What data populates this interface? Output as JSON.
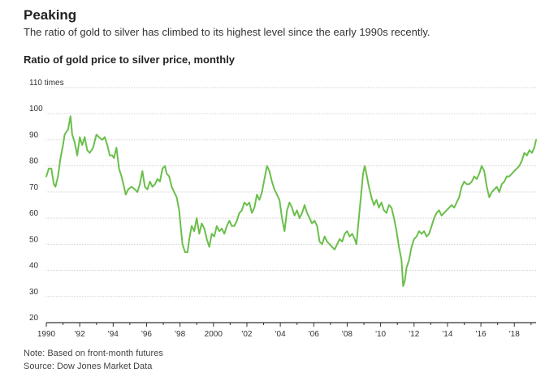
{
  "headline": "Peaking",
  "subhead": "The ratio of gold to silver has climbed to its highest level since the early 1990s recently.",
  "note": "Note: Based on front-month futures",
  "source": "Source: Dow Jones Market Data",
  "colors": {
    "line": "#6abf4b",
    "grid": "#d0d0d0",
    "axis": "#333333",
    "text": "#333333"
  },
  "chart_data": {
    "type": "line",
    "title": "Ratio of gold price to silver price, monthly",
    "ylabel": "",
    "xlabel": "",
    "ylim": [
      20,
      110
    ],
    "xlim": [
      1990,
      2019.3
    ],
    "y_ticks": [
      {
        "value": 110,
        "label": "110 times"
      },
      {
        "value": 100,
        "label": "100"
      },
      {
        "value": 90,
        "label": "90"
      },
      {
        "value": 80,
        "label": "80"
      },
      {
        "value": 70,
        "label": "70"
      },
      {
        "value": 60,
        "label": "60"
      },
      {
        "value": 50,
        "label": "50"
      },
      {
        "value": 40,
        "label": "40"
      },
      {
        "value": 30,
        "label": "30"
      },
      {
        "value": 20,
        "label": "20"
      }
    ],
    "x_ticks": [
      {
        "value": 1990,
        "label": "1990"
      },
      {
        "value": 1992,
        "label": "'92"
      },
      {
        "value": 1994,
        "label": "'94"
      },
      {
        "value": 1996,
        "label": "'96"
      },
      {
        "value": 1998,
        "label": "'98"
      },
      {
        "value": 2000,
        "label": "2000"
      },
      {
        "value": 2002,
        "label": "'02"
      },
      {
        "value": 2004,
        "label": "'04"
      },
      {
        "value": 2006,
        "label": "'06"
      },
      {
        "value": 2008,
        "label": "'08"
      },
      {
        "value": 2010,
        "label": "'10"
      },
      {
        "value": 2012,
        "label": "'12"
      },
      {
        "value": 2014,
        "label": "'14"
      },
      {
        "value": 2016,
        "label": "'16"
      },
      {
        "value": 2018,
        "label": "'18"
      }
    ],
    "minor_x_ticks": [
      1991,
      1993,
      1995,
      1997,
      1999,
      2001,
      2003,
      2005,
      2007,
      2009,
      2011,
      2013,
      2015,
      2017,
      2019
    ],
    "grid": true,
    "series": [
      {
        "color": "#6abf4b",
        "points": [
          [
            1990.0,
            76
          ],
          [
            1990.15,
            79
          ],
          [
            1990.3,
            79
          ],
          [
            1990.45,
            73
          ],
          [
            1990.55,
            72
          ],
          [
            1990.7,
            76
          ],
          [
            1990.85,
            83
          ],
          [
            1991.0,
            88
          ],
          [
            1991.1,
            92
          ],
          [
            1991.3,
            94
          ],
          [
            1991.45,
            99
          ],
          [
            1991.55,
            92
          ],
          [
            1991.7,
            89
          ],
          [
            1991.85,
            84
          ],
          [
            1992.0,
            91
          ],
          [
            1992.15,
            88
          ],
          [
            1992.3,
            91
          ],
          [
            1992.45,
            86
          ],
          [
            1992.6,
            85
          ],
          [
            1992.8,
            87
          ],
          [
            1993.0,
            92
          ],
          [
            1993.15,
            91
          ],
          [
            1993.35,
            90
          ],
          [
            1993.5,
            91
          ],
          [
            1993.65,
            88
          ],
          [
            1993.8,
            84
          ],
          [
            1993.95,
            84
          ],
          [
            1994.05,
            83
          ],
          [
            1994.2,
            87
          ],
          [
            1994.35,
            79
          ],
          [
            1994.5,
            76
          ],
          [
            1994.65,
            72
          ],
          [
            1994.75,
            69
          ],
          [
            1994.9,
            71
          ],
          [
            1995.1,
            72
          ],
          [
            1995.3,
            71
          ],
          [
            1995.45,
            70
          ],
          [
            1995.6,
            73
          ],
          [
            1995.75,
            78
          ],
          [
            1995.9,
            72
          ],
          [
            1996.05,
            71
          ],
          [
            1996.2,
            74
          ],
          [
            1996.35,
            72
          ],
          [
            1996.5,
            73
          ],
          [
            1996.65,
            75
          ],
          [
            1996.8,
            74
          ],
          [
            1996.95,
            79
          ],
          [
            1997.1,
            80
          ],
          [
            1997.2,
            77
          ],
          [
            1997.35,
            76
          ],
          [
            1997.5,
            72
          ],
          [
            1997.65,
            70
          ],
          [
            1997.8,
            68
          ],
          [
            1997.95,
            63
          ],
          [
            1998.05,
            56
          ],
          [
            1998.15,
            50
          ],
          [
            1998.3,
            47
          ],
          [
            1998.45,
            47
          ],
          [
            1998.55,
            52
          ],
          [
            1998.7,
            57
          ],
          [
            1998.85,
            55
          ],
          [
            1999.0,
            60
          ],
          [
            1999.15,
            54
          ],
          [
            1999.3,
            58
          ],
          [
            1999.45,
            56
          ],
          [
            1999.6,
            52
          ],
          [
            1999.75,
            49
          ],
          [
            1999.9,
            54
          ],
          [
            2000.05,
            53
          ],
          [
            2000.2,
            57
          ],
          [
            2000.35,
            55
          ],
          [
            2000.5,
            56
          ],
          [
            2000.65,
            54
          ],
          [
            2000.8,
            57
          ],
          [
            2000.95,
            59
          ],
          [
            2001.1,
            57
          ],
          [
            2001.25,
            57
          ],
          [
            2001.4,
            59
          ],
          [
            2001.55,
            62
          ],
          [
            2001.7,
            63
          ],
          [
            2001.85,
            66
          ],
          [
            2002.0,
            65
          ],
          [
            2002.15,
            66
          ],
          [
            2002.3,
            62
          ],
          [
            2002.45,
            64
          ],
          [
            2002.6,
            69
          ],
          [
            2002.75,
            67
          ],
          [
            2002.9,
            70
          ],
          [
            2003.05,
            75
          ],
          [
            2003.2,
            80
          ],
          [
            2003.35,
            78
          ],
          [
            2003.5,
            74
          ],
          [
            2003.65,
            71
          ],
          [
            2003.8,
            69
          ],
          [
            2003.95,
            67
          ],
          [
            2004.1,
            60
          ],
          [
            2004.25,
            55
          ],
          [
            2004.4,
            63
          ],
          [
            2004.55,
            66
          ],
          [
            2004.7,
            64
          ],
          [
            2004.85,
            61
          ],
          [
            2005.0,
            63
          ],
          [
            2005.15,
            60
          ],
          [
            2005.3,
            62
          ],
          [
            2005.45,
            65
          ],
          [
            2005.6,
            62
          ],
          [
            2005.75,
            60
          ],
          [
            2005.9,
            58
          ],
          [
            2006.05,
            59
          ],
          [
            2006.2,
            57
          ],
          [
            2006.35,
            51
          ],
          [
            2006.5,
            50
          ],
          [
            2006.65,
            53
          ],
          [
            2006.8,
            51
          ],
          [
            2006.95,
            50
          ],
          [
            2007.1,
            49
          ],
          [
            2007.25,
            48
          ],
          [
            2007.4,
            50
          ],
          [
            2007.55,
            52
          ],
          [
            2007.7,
            51
          ],
          [
            2007.85,
            54
          ],
          [
            2008.0,
            55
          ],
          [
            2008.15,
            53
          ],
          [
            2008.3,
            54
          ],
          [
            2008.45,
            52
          ],
          [
            2008.55,
            50
          ],
          [
            2008.7,
            60
          ],
          [
            2008.85,
            70
          ],
          [
            2008.95,
            77
          ],
          [
            2009.05,
            80
          ],
          [
            2009.15,
            77
          ],
          [
            2009.3,
            72
          ],
          [
            2009.45,
            68
          ],
          [
            2009.6,
            65
          ],
          [
            2009.75,
            67
          ],
          [
            2009.9,
            64
          ],
          [
            2010.05,
            66
          ],
          [
            2010.2,
            63
          ],
          [
            2010.35,
            62
          ],
          [
            2010.5,
            65
          ],
          [
            2010.65,
            64
          ],
          [
            2010.8,
            60
          ],
          [
            2010.95,
            55
          ],
          [
            2011.1,
            49
          ],
          [
            2011.25,
            44
          ],
          [
            2011.35,
            34
          ],
          [
            2011.45,
            36
          ],
          [
            2011.55,
            41
          ],
          [
            2011.7,
            44
          ],
          [
            2011.85,
            49
          ],
          [
            2012.0,
            52
          ],
          [
            2012.15,
            53
          ],
          [
            2012.3,
            55
          ],
          [
            2012.45,
            54
          ],
          [
            2012.6,
            55
          ],
          [
            2012.75,
            53
          ],
          [
            2012.9,
            54
          ],
          [
            2013.05,
            57
          ],
          [
            2013.2,
            60
          ],
          [
            2013.35,
            62
          ],
          [
            2013.5,
            63
          ],
          [
            2013.65,
            61
          ],
          [
            2013.8,
            62
          ],
          [
            2013.95,
            63
          ],
          [
            2014.1,
            64
          ],
          [
            2014.25,
            65
          ],
          [
            2014.4,
            64
          ],
          [
            2014.55,
            66
          ],
          [
            2014.7,
            68
          ],
          [
            2014.85,
            72
          ],
          [
            2015.0,
            74
          ],
          [
            2015.15,
            73
          ],
          [
            2015.3,
            73
          ],
          [
            2015.45,
            74
          ],
          [
            2015.6,
            76
          ],
          [
            2015.75,
            75
          ],
          [
            2015.9,
            77
          ],
          [
            2016.05,
            80
          ],
          [
            2016.2,
            78
          ],
          [
            2016.35,
            72
          ],
          [
            2016.5,
            68
          ],
          [
            2016.65,
            70
          ],
          [
            2016.8,
            71
          ],
          [
            2016.95,
            72
          ],
          [
            2017.1,
            70
          ],
          [
            2017.25,
            73
          ],
          [
            2017.4,
            74
          ],
          [
            2017.55,
            76
          ],
          [
            2017.7,
            76
          ],
          [
            2017.85,
            77
          ],
          [
            2018.0,
            78
          ],
          [
            2018.15,
            79
          ],
          [
            2018.3,
            80
          ],
          [
            2018.45,
            82
          ],
          [
            2018.6,
            85
          ],
          [
            2018.75,
            84
          ],
          [
            2018.9,
            86
          ],
          [
            2019.05,
            85
          ],
          [
            2019.2,
            87
          ],
          [
            2019.3,
            90
          ]
        ]
      }
    ]
  }
}
